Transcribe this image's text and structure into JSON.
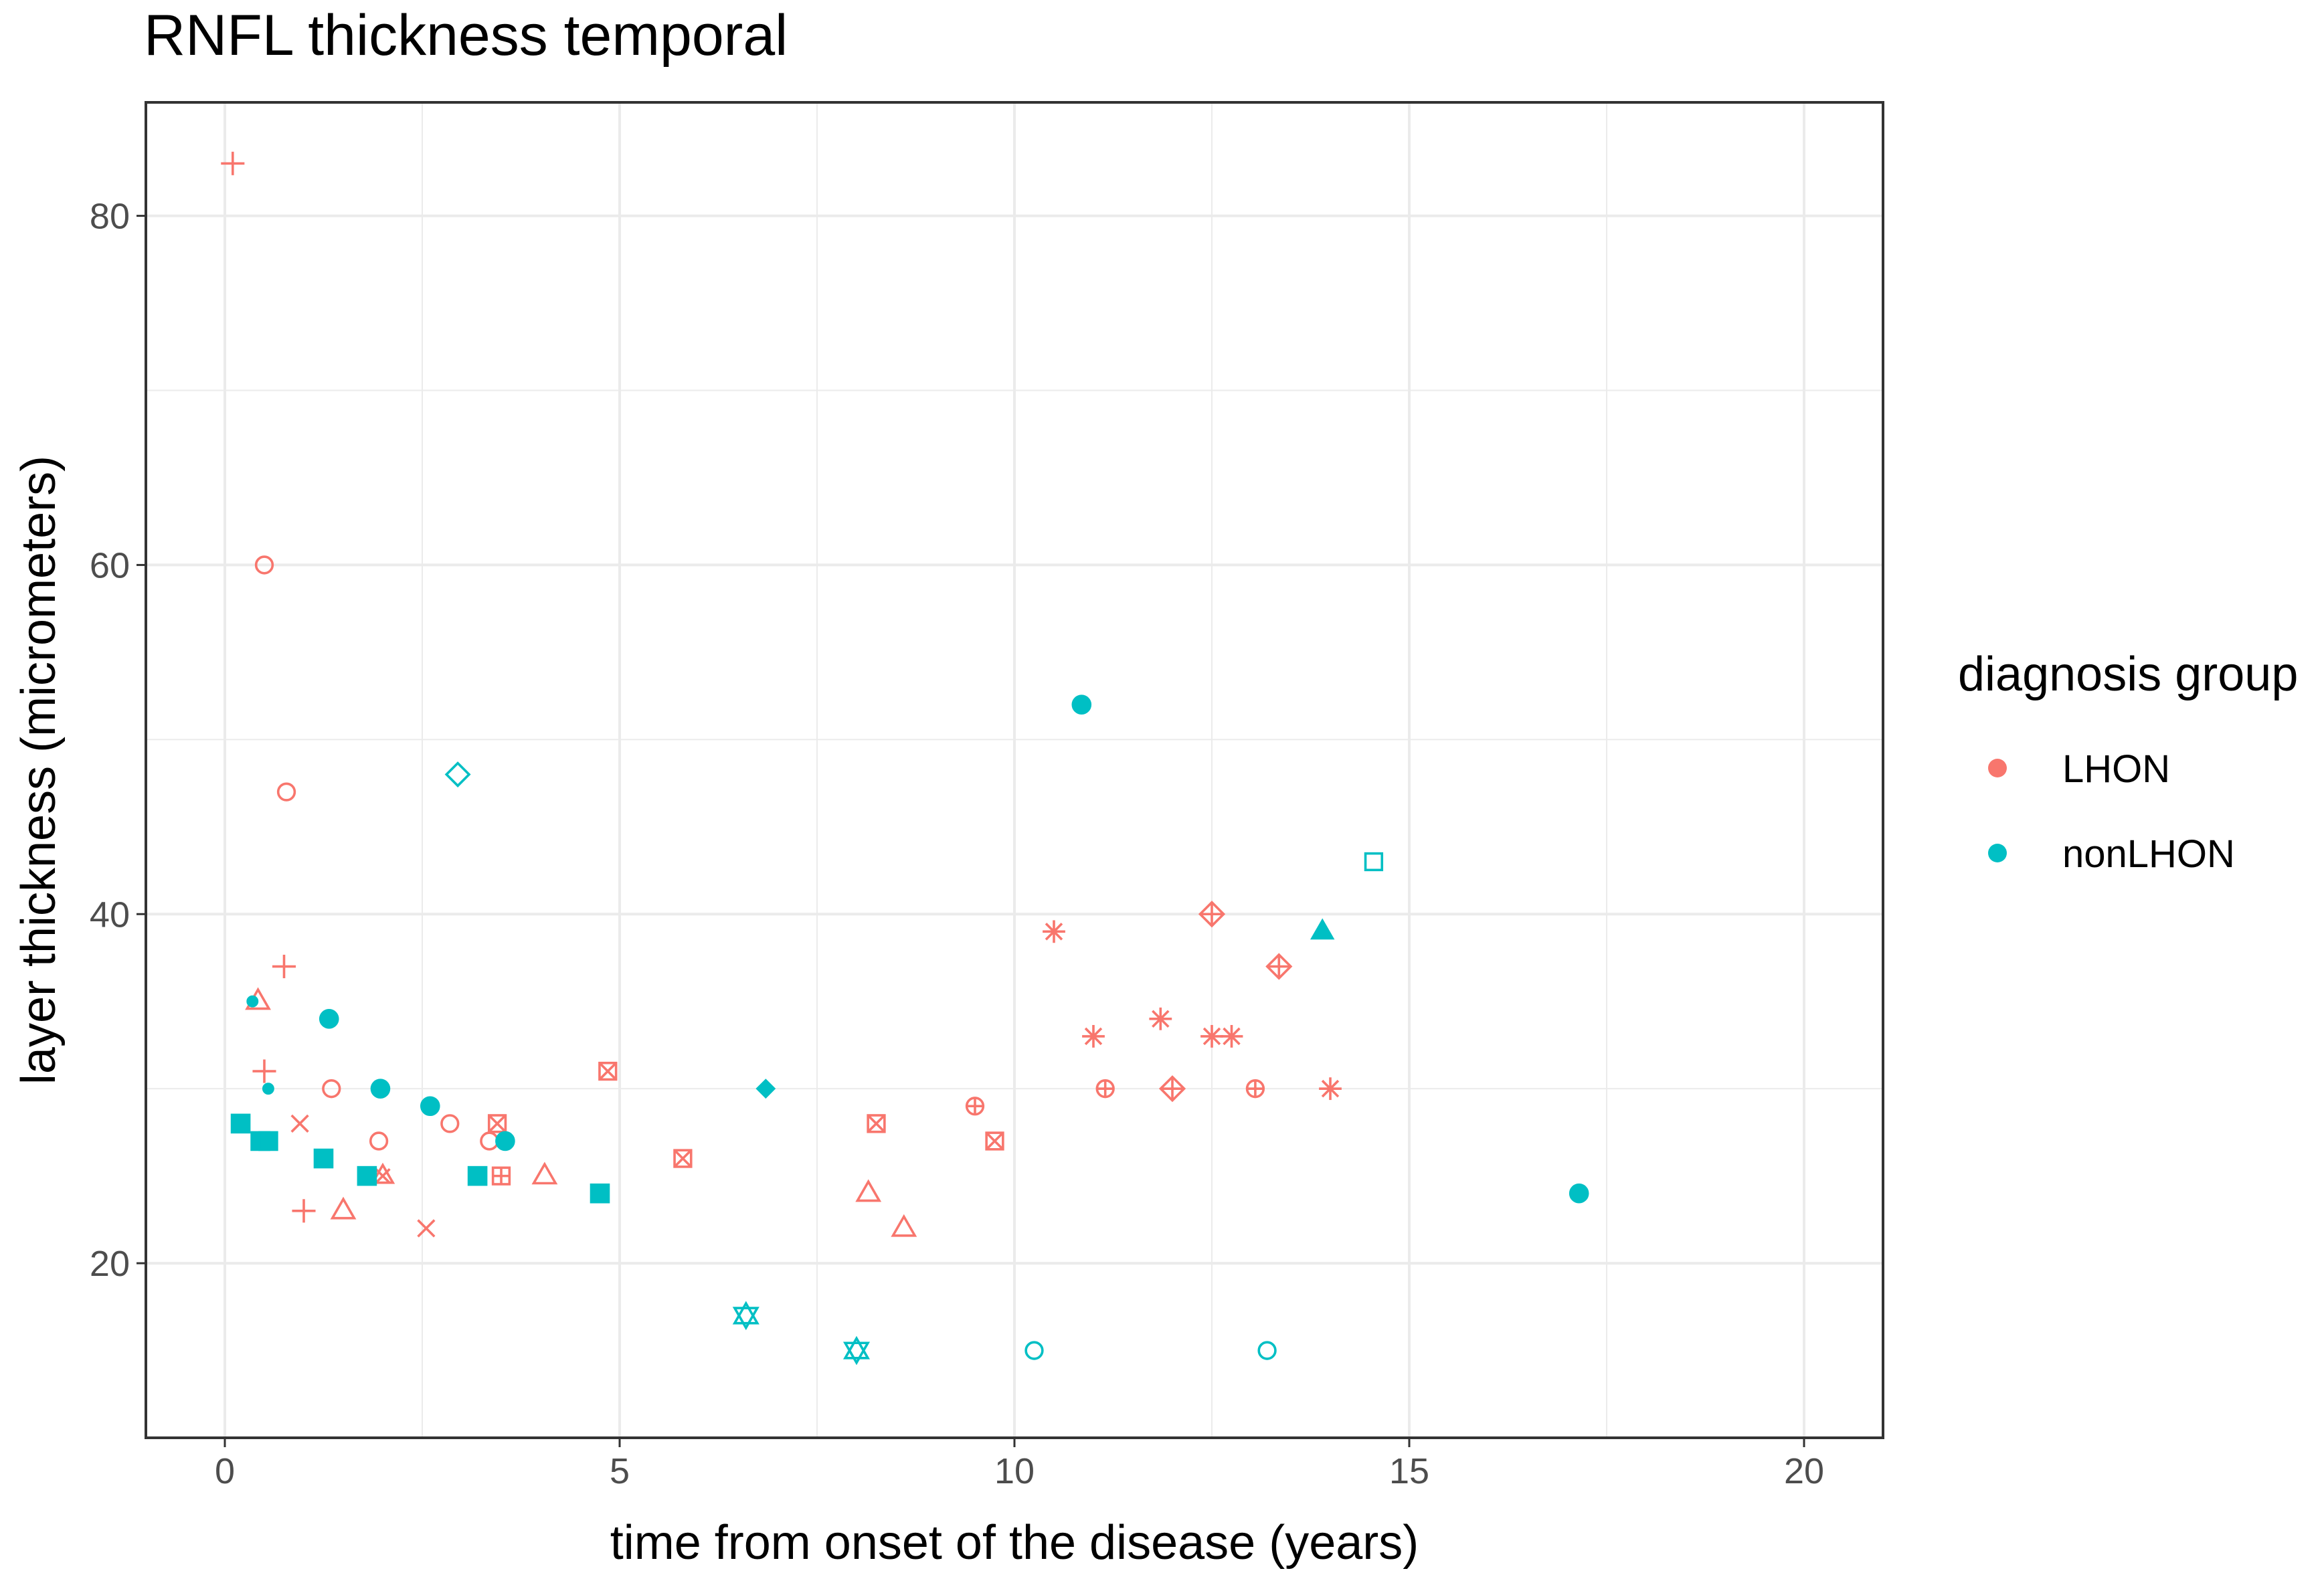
{
  "chart_data": {
    "type": "scatter",
    "title": "RNFL thickness temporal",
    "xlabel": "time from onset of the disease (years)",
    "ylabel": "layer thickness (micrometers)",
    "xlim": [
      -1,
      21
    ],
    "ylim": [
      10,
      86.5
    ],
    "x_ticks": [
      0,
      5,
      10,
      15,
      20
    ],
    "y_ticks": [
      20,
      40,
      60,
      80
    ],
    "grid": true,
    "legend": {
      "title": "diagnosis group",
      "position": "right",
      "entries": [
        {
          "label": "LHON",
          "color": "#F8766D"
        },
        {
          "label": "nonLHON",
          "color": "#00BFC4"
        }
      ]
    },
    "series": [
      {
        "name": "LHON",
        "color": "#F8766D",
        "points": [
          {
            "x": 0.1,
            "y": 83,
            "shape": "plus"
          },
          {
            "x": 0.5,
            "y": 31,
            "shape": "plus"
          },
          {
            "x": 0.75,
            "y": 37,
            "shape": "plus"
          },
          {
            "x": 1.0,
            "y": 23,
            "shape": "plus"
          },
          {
            "x": 0.5,
            "y": 60,
            "shape": "circle-open"
          },
          {
            "x": 0.78,
            "y": 47,
            "shape": "circle-open"
          },
          {
            "x": 1.35,
            "y": 30,
            "shape": "circle-open"
          },
          {
            "x": 1.95,
            "y": 27,
            "shape": "circle-open"
          },
          {
            "x": 2.85,
            "y": 28,
            "shape": "circle-open"
          },
          {
            "x": 3.35,
            "y": 27,
            "shape": "circle-open"
          },
          {
            "x": 0.42,
            "y": 35,
            "shape": "triangle-open"
          },
          {
            "x": 1.5,
            "y": 23,
            "shape": "triangle-open"
          },
          {
            "x": 4.05,
            "y": 25,
            "shape": "triangle-open"
          },
          {
            "x": 8.15,
            "y": 24,
            "shape": "triangle-open"
          },
          {
            "x": 8.6,
            "y": 22,
            "shape": "triangle-open"
          },
          {
            "x": 0.95,
            "y": 28,
            "shape": "cross"
          },
          {
            "x": 2.55,
            "y": 22,
            "shape": "cross"
          },
          {
            "x": 2.0,
            "y": 25,
            "shape": "triangle-cross"
          },
          {
            "x": 3.45,
            "y": 28,
            "shape": "square-cross"
          },
          {
            "x": 4.85,
            "y": 31,
            "shape": "square-cross"
          },
          {
            "x": 5.8,
            "y": 26,
            "shape": "square-cross"
          },
          {
            "x": 8.25,
            "y": 28,
            "shape": "square-cross"
          },
          {
            "x": 9.75,
            "y": 27,
            "shape": "square-cross"
          },
          {
            "x": 3.5,
            "y": 25,
            "shape": "square-plus"
          },
          {
            "x": 9.5,
            "y": 29,
            "shape": "circle-plus"
          },
          {
            "x": 11.15,
            "y": 30,
            "shape": "circle-plus"
          },
          {
            "x": 13.05,
            "y": 30,
            "shape": "circle-plus"
          },
          {
            "x": 10.5,
            "y": 39,
            "shape": "asterisk"
          },
          {
            "x": 11.0,
            "y": 33,
            "shape": "asterisk"
          },
          {
            "x": 11.85,
            "y": 34,
            "shape": "asterisk"
          },
          {
            "x": 12.5,
            "y": 33,
            "shape": "asterisk"
          },
          {
            "x": 12.75,
            "y": 33,
            "shape": "asterisk"
          },
          {
            "x": 14.0,
            "y": 30,
            "shape": "asterisk"
          },
          {
            "x": 12.0,
            "y": 30,
            "shape": "diamond-plus"
          },
          {
            "x": 12.5,
            "y": 40,
            "shape": "diamond-plus"
          },
          {
            "x": 13.35,
            "y": 37,
            "shape": "diamond-plus"
          }
        ]
      },
      {
        "name": "nonLHON",
        "color": "#00BFC4",
        "points": [
          {
            "x": 0.2,
            "y": 28,
            "shape": "square-filled"
          },
          {
            "x": 0.45,
            "y": 27,
            "shape": "square-filled"
          },
          {
            "x": 0.55,
            "y": 27,
            "shape": "square-filled"
          },
          {
            "x": 1.25,
            "y": 26,
            "shape": "square-filled"
          },
          {
            "x": 1.8,
            "y": 25,
            "shape": "square-filled"
          },
          {
            "x": 3.2,
            "y": 25,
            "shape": "square-filled"
          },
          {
            "x": 4.75,
            "y": 24,
            "shape": "square-filled"
          },
          {
            "x": 0.35,
            "y": 35,
            "shape": "dot-small"
          },
          {
            "x": 0.55,
            "y": 30,
            "shape": "dot-small"
          },
          {
            "x": 1.32,
            "y": 34,
            "shape": "circle-filled"
          },
          {
            "x": 1.97,
            "y": 30,
            "shape": "circle-filled"
          },
          {
            "x": 2.6,
            "y": 29,
            "shape": "circle-filled"
          },
          {
            "x": 3.55,
            "y": 27,
            "shape": "circle-filled"
          },
          {
            "x": 10.85,
            "y": 52,
            "shape": "circle-filled"
          },
          {
            "x": 17.15,
            "y": 24,
            "shape": "circle-filled"
          },
          {
            "x": 2.95,
            "y": 48,
            "shape": "diamond-open"
          },
          {
            "x": 6.85,
            "y": 30,
            "shape": "diamond-filled"
          },
          {
            "x": 6.6,
            "y": 17,
            "shape": "star-of-david"
          },
          {
            "x": 8.0,
            "y": 15,
            "shape": "star-of-david"
          },
          {
            "x": 10.25,
            "y": 15,
            "shape": "circle-open"
          },
          {
            "x": 13.2,
            "y": 15,
            "shape": "circle-open"
          },
          {
            "x": 13.9,
            "y": 39,
            "shape": "triangle-filled"
          },
          {
            "x": 14.55,
            "y": 43,
            "shape": "square-open"
          }
        ]
      }
    ]
  }
}
